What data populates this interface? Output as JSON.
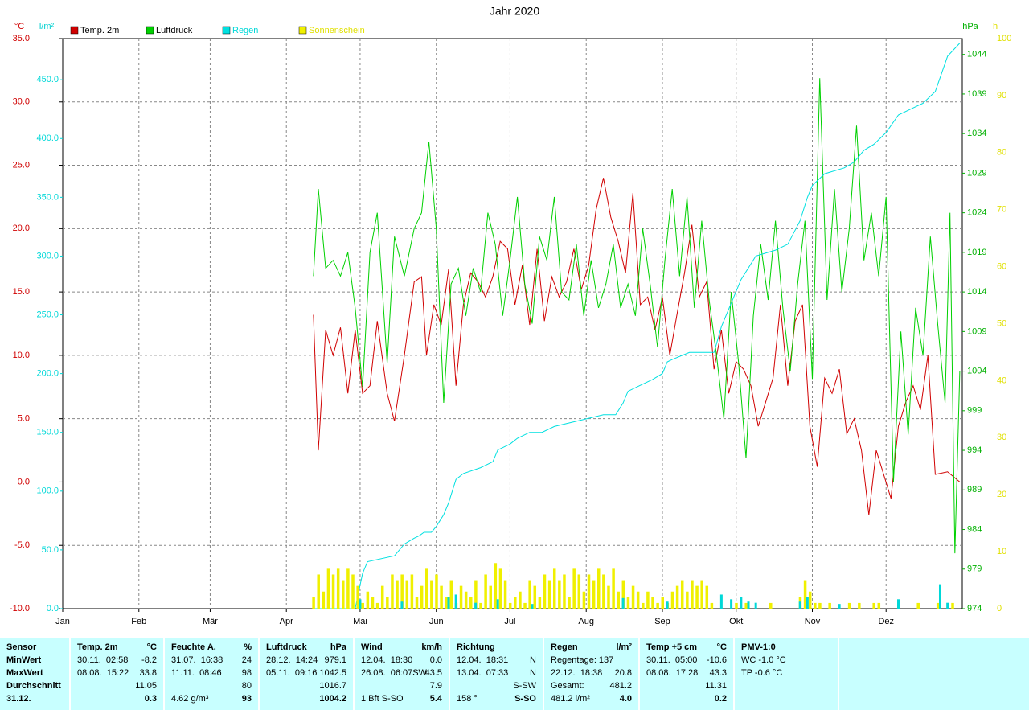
{
  "chart_data": {
    "type": "line",
    "title": "Jahr 2020",
    "y_unit": "°C",
    "y3_unit": "l/m²",
    "y2_unit": "hPa",
    "y4_unit": "h",
    "xlim": [
      0,
      366
    ],
    "xticks": [
      {
        "value": 0,
        "label": "Jan"
      },
      {
        "value": 31,
        "label": "Feb"
      },
      {
        "value": 60,
        "label": "Mär"
      },
      {
        "value": 91,
        "label": "Apr"
      },
      {
        "value": 121,
        "label": "Mai"
      },
      {
        "value": 152,
        "label": "Jun"
      },
      {
        "value": 182,
        "label": "Jul"
      },
      {
        "value": 213,
        "label": "Aug"
      },
      {
        "value": 244,
        "label": "Sep"
      },
      {
        "value": 274,
        "label": "Okt"
      },
      {
        "value": 305,
        "label": "Nov"
      },
      {
        "value": 335,
        "label": "Dez"
      }
    ],
    "ylim": [
      -10,
      35
    ],
    "yticks": [
      {
        "value": -10,
        "label": "-10.0"
      },
      {
        "value": -5,
        "label": "-5.0"
      },
      {
        "value": 0,
        "label": "0.0"
      },
      {
        "value": 5,
        "label": "5.0"
      },
      {
        "value": 10,
        "label": "10.0"
      },
      {
        "value": 15,
        "label": "15.0"
      },
      {
        "value": 20,
        "label": "20.0"
      },
      {
        "value": 25,
        "label": "25.0"
      },
      {
        "value": 30,
        "label": "30.0"
      },
      {
        "value": 35,
        "label": "35.0"
      }
    ],
    "y3lim": [
      0,
      485
    ],
    "y3ticks": [
      {
        "value": 0,
        "label": "0.0"
      },
      {
        "value": 50,
        "label": "50.0"
      },
      {
        "value": 100,
        "label": "100.0"
      },
      {
        "value": 150,
        "label": "150.0"
      },
      {
        "value": 200,
        "label": "200.0"
      },
      {
        "value": 250,
        "label": "250.0"
      },
      {
        "value": 300,
        "label": "300.0"
      },
      {
        "value": 350,
        "label": "350.0"
      },
      {
        "value": 400,
        "label": "400.0"
      },
      {
        "value": 450,
        "label": "450.0"
      }
    ],
    "y2lim": [
      974,
      1046
    ],
    "y2ticks": [
      974,
      979,
      984,
      989,
      994,
      999,
      1004,
      1009,
      1014,
      1019,
      1024,
      1029,
      1034,
      1039,
      1044
    ],
    "y4lim": [
      0,
      100
    ],
    "y4ticks": [
      0,
      10,
      20,
      30,
      40,
      50,
      60,
      70,
      80,
      90,
      100
    ],
    "grid": true,
    "series": [
      {
        "name": "Temp. 2m",
        "color": "#d00000",
        "axis": "y",
        "mark": "line",
        "x": [
          102,
          104,
          107,
          110,
          113,
          116,
          119,
          122,
          125,
          128,
          132,
          135,
          139,
          143,
          146,
          148,
          151,
          154,
          157,
          160,
          163,
          166,
          169,
          172,
          175,
          178,
          181,
          184,
          187,
          190,
          193,
          196,
          199,
          202,
          205,
          208,
          211,
          214,
          217,
          220,
          223,
          226,
          229,
          232,
          235,
          238,
          241,
          244,
          247,
          250,
          253,
          256,
          259,
          262,
          265,
          268,
          271,
          274,
          277,
          280,
          283,
          286,
          289,
          292,
          295,
          298,
          301,
          304,
          307,
          310,
          313,
          316,
          319,
          322,
          325,
          328,
          331,
          334,
          337,
          340,
          343,
          346,
          349,
          352,
          355,
          360,
          365
        ],
        "values": [
          13.2,
          2.5,
          12,
          10,
          12.2,
          7,
          12,
          7,
          7.6,
          12.7,
          7,
          4.8,
          10,
          15.8,
          16.2,
          10,
          14,
          12.4,
          16.8,
          7.6,
          14,
          16.5,
          15.8,
          14.6,
          16.2,
          19,
          18.4,
          14,
          17.1,
          12.4,
          18.4,
          12.7,
          16.2,
          14.6,
          15.8,
          18.4,
          15.2,
          17.1,
          21.5,
          24,
          20.9,
          19,
          16.5,
          22.8,
          14,
          14.6,
          12,
          14.6,
          10,
          13.3,
          16.5,
          20.3,
          14.6,
          15.8,
          8.9,
          12,
          7,
          9.5,
          8.9,
          7.6,
          4.4,
          6.3,
          8.2,
          14,
          7.6,
          12.7,
          14,
          4.4,
          1.2,
          8.2,
          7,
          8.9,
          3.8,
          5,
          2.5,
          -2.6,
          2.5,
          0.6,
          -1.3,
          4.4,
          6.3,
          7.6,
          5.7,
          10,
          0.6,
          0.8,
          0
        ]
      },
      {
        "name": "Luftdruck",
        "color": "#00d000",
        "axis": "y2",
        "mark": "line",
        "x": [
          102,
          104,
          107,
          110,
          113,
          116,
          119,
          122,
          125,
          128,
          132,
          135,
          139,
          143,
          146,
          149,
          152,
          155,
          158,
          161,
          164,
          167,
          170,
          173,
          176,
          179,
          182,
          185,
          188,
          191,
          194,
          197,
          200,
          203,
          206,
          209,
          212,
          215,
          218,
          221,
          224,
          227,
          230,
          233,
          236,
          239,
          242,
          245,
          248,
          251,
          254,
          257,
          260,
          263,
          266,
          269,
          272,
          275,
          278,
          281,
          284,
          287,
          290,
          293,
          296,
          299,
          302,
          305,
          308,
          311,
          314,
          317,
          320,
          323,
          326,
          329,
          332,
          335,
          338,
          341,
          344,
          347,
          350,
          353,
          356,
          359,
          361,
          363,
          365
        ],
        "values": [
          1016,
          1027,
          1017,
          1018,
          1016,
          1019,
          1012,
          1002,
          1019,
          1024,
          1005,
          1021,
          1016,
          1022,
          1024,
          1033,
          1022,
          1000,
          1015,
          1017,
          1011,
          1017,
          1014,
          1024,
          1020,
          1011,
          1018,
          1026,
          1015,
          1010,
          1021,
          1018,
          1026,
          1014,
          1013,
          1020,
          1011,
          1018,
          1012,
          1015,
          1020,
          1012,
          1015,
          1011,
          1022,
          1015,
          1007,
          1018,
          1027,
          1016,
          1026,
          1012,
          1023,
          1013,
          1006,
          998,
          1014,
          1005,
          993,
          1011,
          1020,
          1013,
          1023,
          1012,
          1004,
          1015,
          1023,
          1003,
          1041,
          1013,
          1027,
          1014,
          1022,
          1035,
          1018,
          1024,
          1016,
          1026,
          990,
          1009,
          996,
          1012,
          1006,
          1021,
          1010,
          1000,
          1024,
          981,
          1004
        ]
      },
      {
        "name": "Regen",
        "color": "#00e0e0",
        "axis": "y3",
        "mark": "line",
        "x": [
          102,
          119,
          121,
          122,
          124,
          135,
          139,
          143,
          145,
          147,
          150,
          152,
          155,
          157,
          160,
          163,
          170,
          175,
          177,
          182,
          185,
          190,
          195,
          200,
          210,
          220,
          225,
          228,
          230,
          235,
          240,
          244,
          246,
          248,
          255,
          265,
          268,
          272,
          276,
          279,
          282,
          290,
          295,
          300,
          303,
          305,
          310,
          318,
          322,
          326,
          330,
          335,
          340,
          345,
          350,
          355,
          360,
          365
        ],
        "values": [
          0,
          0,
          20,
          30,
          40,
          45,
          55,
          60,
          62,
          65,
          65,
          70,
          80,
          90,
          110,
          115,
          120,
          125,
          135,
          140,
          145,
          150,
          150,
          155,
          160,
          165,
          165,
          175,
          185,
          190,
          195,
          200,
          210,
          212,
          218,
          218,
          240,
          260,
          280,
          290,
          300,
          305,
          310,
          330,
          350,
          360,
          370,
          375,
          380,
          390,
          395,
          405,
          420,
          425,
          430,
          440,
          470,
          481.2
        ]
      },
      {
        "name": "Sonnenschein",
        "color": "#f0f000",
        "axis": "y4",
        "mark": "bar",
        "x": [
          102,
          104,
          106,
          108,
          110,
          112,
          114,
          116,
          118,
          120,
          122,
          124,
          126,
          128,
          130,
          132,
          134,
          136,
          138,
          140,
          142,
          144,
          146,
          148,
          150,
          152,
          154,
          156,
          158,
          160,
          162,
          164,
          166,
          168,
          170,
          172,
          174,
          176,
          178,
          180,
          182,
          184,
          186,
          188,
          190,
          192,
          194,
          196,
          198,
          200,
          202,
          204,
          206,
          208,
          210,
          212,
          214,
          216,
          218,
          220,
          222,
          224,
          226,
          228,
          230,
          232,
          234,
          236,
          238,
          240,
          242,
          244,
          246,
          248,
          250,
          252,
          254,
          256,
          258,
          260,
          262,
          264,
          266,
          268,
          270,
          272,
          274,
          276,
          278,
          280,
          282,
          284,
          286,
          288,
          290,
          292,
          294,
          296,
          298,
          300,
          302,
          304,
          306,
          308,
          310,
          312,
          314,
          316,
          318,
          320,
          322,
          324,
          326,
          328,
          330,
          332,
          334,
          336,
          338,
          340,
          342,
          344,
          346,
          348,
          350,
          352,
          354,
          356,
          358,
          360,
          362,
          364
        ],
        "values": [
          2,
          6,
          3,
          7,
          6,
          7,
          5,
          7,
          6,
          4,
          1,
          3,
          2,
          1,
          4,
          2,
          6,
          5,
          6,
          5,
          6,
          2,
          4,
          7,
          5,
          6,
          4,
          2,
          5,
          1,
          4,
          3,
          2,
          5,
          1,
          6,
          4,
          8,
          7,
          5,
          1,
          2,
          3,
          1,
          5,
          4,
          2,
          6,
          5,
          7,
          5,
          6,
          2,
          7,
          6,
          3,
          6,
          5,
          7,
          6,
          4,
          7,
          3,
          5,
          2,
          4,
          3,
          1,
          3,
          2,
          1,
          2,
          1,
          3,
          4,
          5,
          3,
          5,
          4,
          5,
          4,
          1,
          0,
          0,
          0,
          0,
          1,
          0,
          1,
          0,
          0,
          0,
          0,
          1,
          0,
          0,
          0,
          0,
          0,
          2,
          5,
          3,
          1,
          1,
          0,
          1,
          0,
          0,
          0,
          1,
          0,
          1,
          0,
          0,
          1,
          1,
          0,
          0,
          0,
          1,
          0,
          0,
          0,
          1,
          0,
          0,
          0,
          1,
          0,
          0,
          1,
          0
        ]
      }
    ],
    "rain_daily": {
      "color": "#00d8d8",
      "axis": "y3",
      "x": [
        121,
        138,
        157,
        160,
        168,
        177,
        191,
        228,
        246,
        268,
        272,
        276,
        279,
        282,
        300,
        303,
        316,
        340,
        357,
        360
      ],
      "values": [
        8,
        6,
        10,
        12,
        5,
        8,
        4,
        9,
        6,
        12,
        8,
        10,
        6,
        5,
        6,
        10,
        4,
        8,
        20.8,
        5
      ]
    }
  },
  "table": {
    "groups": [
      {
        "title": "Sensor",
        "rows": [
          {
            "l": "MinWert"
          },
          {
            "l": "MaxWert"
          },
          {
            "l": "Durchschnitt"
          }
        ],
        "foot": {
          "l": "31.12."
        }
      },
      {
        "title": "Temp. 2m",
        "unit": "°C",
        "rows": [
          {
            "l": "30.11.  02:58",
            "r": "-8.2"
          },
          {
            "l": "08.08.  15:22",
            "r": "33.8"
          },
          {
            "r": "11.05"
          }
        ],
        "foot": {
          "r": "0.3"
        }
      },
      {
        "title": "Feuchte A.",
        "unit": "%",
        "rows": [
          {
            "l": "31.07.  16:38",
            "r": "24"
          },
          {
            "l": "11.11.  08:46",
            "r": "98"
          },
          {
            "r": "80"
          }
        ],
        "foot": {
          "l": "4.62 g/m³",
          "r": "93"
        }
      },
      {
        "title": "Luftdruck",
        "unit": "hPa",
        "rows": [
          {
            "l": "28.12.  14:24",
            "r": "979.1"
          },
          {
            "l": "05.11.  09:16",
            "r": "1042.5"
          },
          {
            "r": "1016.7"
          }
        ],
        "foot": {
          "r": "1004.2"
        }
      },
      {
        "title": "Wind",
        "unit": "km/h",
        "rows": [
          {
            "l": "12.04.  18:30",
            "r": "0.0"
          },
          {
            "l": "26.08.  06:07SW",
            "r": "43.5"
          },
          {
            "r": "7.9"
          }
        ],
        "foot": {
          "l": "1 Bft S-SO",
          "r": "5.4"
        }
      },
      {
        "title": "Richtung",
        "rows": [
          {
            "l": "12.04.  18:31",
            "r": "N"
          },
          {
            "l": "13.04.  07:33",
            "r": "N"
          },
          {
            "r": "S-SW"
          }
        ],
        "foot": {
          "l": "158 °",
          "r": "S-SO"
        }
      },
      {
        "title": "Regen",
        "unit": "l/m²",
        "rows": [
          {
            "l": "Regentage: 137"
          },
          {
            "l": "22.12.  18:38",
            "r": "20.8"
          },
          {
            "l": "Gesamt:",
            "r": "481.2"
          }
        ],
        "foot": {
          "l": "481.2 l/m²",
          "r": "4.0"
        }
      },
      {
        "title": "Temp +5 cm",
        "unit": "°C",
        "rows": [
          {
            "l": "30.11.  05:00",
            "r": "-10.6"
          },
          {
            "l": "08.08.  17:28",
            "r": "43.3"
          },
          {
            "r": "11.31"
          }
        ],
        "foot": {
          "r": "0.2"
        }
      },
      {
        "title": "PMV-1:0",
        "rows": [
          {
            "l": "WC -1.0 °C"
          },
          {
            "l": "TP -0.6 °C"
          }
        ]
      }
    ]
  }
}
